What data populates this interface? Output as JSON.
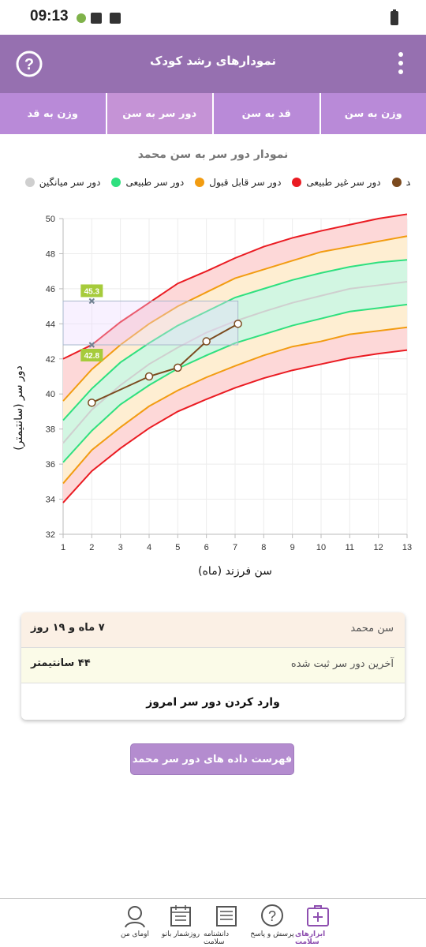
{
  "status_bar": {
    "time": "09:13"
  },
  "app_bar": {
    "title": "نمودارهای رشد کودک"
  },
  "tabs": {
    "items": [
      "وزن به سن",
      "قد به سن",
      "دور سر به سن",
      "وزن به قد"
    ],
    "selected": 2
  },
  "chart_data": {
    "type": "line",
    "title": "نمودار دور سر به سن محمد",
    "x_label": "سن فرزند (ماه)",
    "y_label": "دور سر (سانتیمتر)",
    "x": [
      1,
      2,
      3,
      4,
      5,
      6,
      7,
      8,
      9,
      10,
      11,
      12,
      13
    ],
    "xlim": [
      1,
      13
    ],
    "xticks": [
      1,
      2,
      3,
      4,
      5,
      6,
      7,
      8,
      9,
      10,
      11,
      12,
      13
    ],
    "ylim": [
      32,
      50
    ],
    "yticks": [
      32,
      34,
      36,
      38,
      40,
      42,
      44,
      46,
      48,
      50
    ],
    "grid": true,
    "series": [
      {
        "name": "محمد",
        "color": "#7b4a1e",
        "x": [
          2,
          4,
          5,
          6,
          7.1
        ],
        "values": [
          39.5,
          41,
          41.5,
          43,
          44
        ]
      },
      {
        "name": "دور سر غیر طبیعی",
        "color": "#ea1b22",
        "fill": "#fdd8d8",
        "upper": [
          42.0,
          42.8,
          44.1,
          45.2,
          46.3,
          47.0,
          47.75,
          48.4,
          48.9,
          49.3,
          49.65,
          50.0,
          50.25
        ],
        "lower": [
          33.8,
          35.6,
          36.9,
          38.05,
          39.0,
          39.7,
          40.35,
          40.9,
          41.35,
          41.7,
          42.05,
          42.3,
          42.5
        ]
      },
      {
        "name": "دور سر قابل قبول",
        "color": "#f29c11",
        "fill": "#feeed2",
        "upper": [
          39.6,
          41.4,
          42.8,
          44.0,
          45.0,
          45.8,
          46.6,
          47.1,
          47.6,
          48.1,
          48.4,
          48.7,
          49.0
        ],
        "lower": [
          34.9,
          36.8,
          38.1,
          39.3,
          40.2,
          40.95,
          41.6,
          42.2,
          42.7,
          43.0,
          43.4,
          43.6,
          43.8
        ]
      },
      {
        "name": "دور سر طبیعی",
        "color": "#2fe07f",
        "fill": "#d2f6e2",
        "upper": [
          38.5,
          40.3,
          41.8,
          42.9,
          43.9,
          44.7,
          45.5,
          46.0,
          46.5,
          46.9,
          47.25,
          47.5,
          47.65
        ],
        "lower": [
          36.1,
          37.9,
          39.4,
          40.5,
          41.45,
          42.2,
          42.9,
          43.4,
          43.9,
          44.3,
          44.7,
          44.9,
          45.1
        ]
      },
      {
        "name": "دور سر میانگین",
        "color": "#cfcfcf",
        "values": [
          37.2,
          39.1,
          40.5,
          41.7,
          42.65,
          43.5,
          44.15,
          44.7,
          45.2,
          45.6,
          46.0,
          46.2,
          46.4
        ]
      }
    ],
    "markers": [
      45.3,
      42.8
    ],
    "marker_color": "#a6cb3b"
  },
  "info_card": {
    "rows": [
      {
        "label": "سن محمد",
        "value": "۷ ماه و ۱۹ روز"
      },
      {
        "label": "آخرین دور سر ثبت شده",
        "value": "۴۴ سانتیمتر"
      }
    ],
    "action": "وارد کردن دور سر امروز"
  },
  "list_button": "فهرست داده های دور سر محمد",
  "bottom_nav": {
    "items": [
      "ابزارهای سلامت",
      "پرسش و پاسخ",
      "دانشنامه سلامت",
      "روزشمار بانو",
      "اومای من"
    ],
    "selected": 0
  }
}
